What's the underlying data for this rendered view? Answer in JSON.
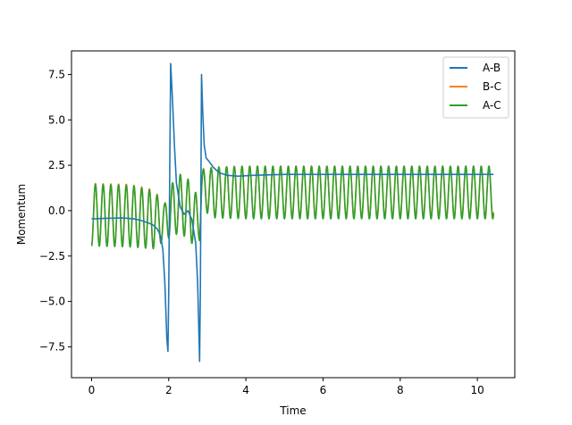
{
  "chart_data": {
    "type": "line",
    "title": "",
    "xlabel": "Time",
    "ylabel": "Momentum",
    "xlim": [
      -0.52,
      10.97
    ],
    "ylim": [
      -9.2,
      8.8
    ],
    "xticks": [
      0,
      2,
      4,
      6,
      8,
      10
    ],
    "xtick_labels": [
      "0",
      "2",
      "4",
      "6",
      "8",
      "10"
    ],
    "yticks": [
      -7.5,
      -5.0,
      -2.5,
      0.0,
      2.5,
      5.0,
      7.5
    ],
    "ytick_labels": [
      "−7.5",
      "−5.0",
      "−2.5",
      "0.0",
      "2.5",
      "5.0",
      "7.5"
    ],
    "grid": false,
    "legend_position": "top-right",
    "series": [
      {
        "name": "A-B",
        "color": "#1f77b4",
        "x": [
          0.0,
          0.1,
          0.4,
          0.8,
          1.1,
          1.3,
          1.5,
          1.6,
          1.7,
          1.75,
          1.8,
          1.85,
          1.9,
          1.95,
          1.98,
          2.0,
          2.05,
          2.1,
          2.15,
          2.2,
          2.3,
          2.4,
          2.5,
          2.6,
          2.7,
          2.75,
          2.8,
          2.82,
          2.85,
          2.88,
          2.92,
          2.97,
          3.05,
          3.15,
          3.3,
          3.5,
          3.8,
          4.2,
          5.0,
          6.0,
          7.0,
          8.0,
          9.0,
          10.0,
          10.42
        ],
        "y": [
          -0.45,
          -0.45,
          -0.42,
          -0.4,
          -0.45,
          -0.55,
          -0.7,
          -0.8,
          -1.0,
          -1.2,
          -1.5,
          -2.2,
          -4.0,
          -7.0,
          -7.75,
          -4.5,
          8.1,
          6.0,
          3.5,
          1.5,
          0.2,
          -0.2,
          0.0,
          -0.5,
          -1.8,
          -4.0,
          -8.3,
          -4.5,
          7.5,
          5.5,
          3.6,
          2.9,
          2.7,
          2.4,
          2.1,
          1.95,
          1.9,
          1.95,
          2.0,
          2.0,
          2.0,
          2.0,
          2.0,
          2.0,
          2.0
        ]
      },
      {
        "name": "B-C",
        "color": "#ff7f0e",
        "oscillation_period": 0.2,
        "oscillation_centers": [
          [
            0.0,
            -0.2
          ],
          [
            1.0,
            -0.25
          ],
          [
            1.6,
            -0.45
          ],
          [
            1.9,
            -0.6
          ],
          [
            2.0,
            -0.1
          ],
          [
            2.3,
            0.4
          ],
          [
            2.6,
            -0.1
          ],
          [
            2.8,
            -0.6
          ],
          [
            2.85,
            1.2
          ],
          [
            3.2,
            1.05
          ],
          [
            4.0,
            1.05
          ],
          [
            10.42,
            1.05
          ]
        ],
        "oscillation_amplitudes": [
          [
            0.0,
            1.7
          ],
          [
            1.0,
            1.7
          ],
          [
            1.6,
            1.6
          ],
          [
            1.9,
            1.0
          ],
          [
            2.0,
            1.4
          ],
          [
            2.3,
            1.6
          ],
          [
            2.6,
            1.7
          ],
          [
            2.8,
            1.0
          ],
          [
            2.85,
            1.1
          ],
          [
            3.2,
            1.35
          ],
          [
            4.0,
            1.4
          ],
          [
            10.42,
            1.4
          ]
        ]
      },
      {
        "name": "A-C",
        "color": "#2ca02c",
        "oscillation_period": 0.2,
        "oscillation_centers": [
          [
            0.0,
            -0.25
          ],
          [
            1.0,
            -0.3
          ],
          [
            1.6,
            -0.5
          ],
          [
            1.9,
            -0.65
          ],
          [
            2.0,
            -0.1
          ],
          [
            2.3,
            0.4
          ],
          [
            2.6,
            -0.1
          ],
          [
            2.8,
            -0.65
          ],
          [
            2.85,
            1.15
          ],
          [
            3.2,
            1.0
          ],
          [
            4.0,
            1.0
          ],
          [
            10.42,
            1.0
          ]
        ],
        "oscillation_amplitudes": [
          [
            0.0,
            1.7
          ],
          [
            1.0,
            1.7
          ],
          [
            1.6,
            1.6
          ],
          [
            1.9,
            1.0
          ],
          [
            2.0,
            1.4
          ],
          [
            2.3,
            1.6
          ],
          [
            2.6,
            1.7
          ],
          [
            2.8,
            1.0
          ],
          [
            2.85,
            1.1
          ],
          [
            3.2,
            1.4
          ],
          [
            4.0,
            1.45
          ],
          [
            10.42,
            1.45
          ]
        ],
        "x_range": [
          0.0,
          10.42
        ]
      }
    ]
  }
}
